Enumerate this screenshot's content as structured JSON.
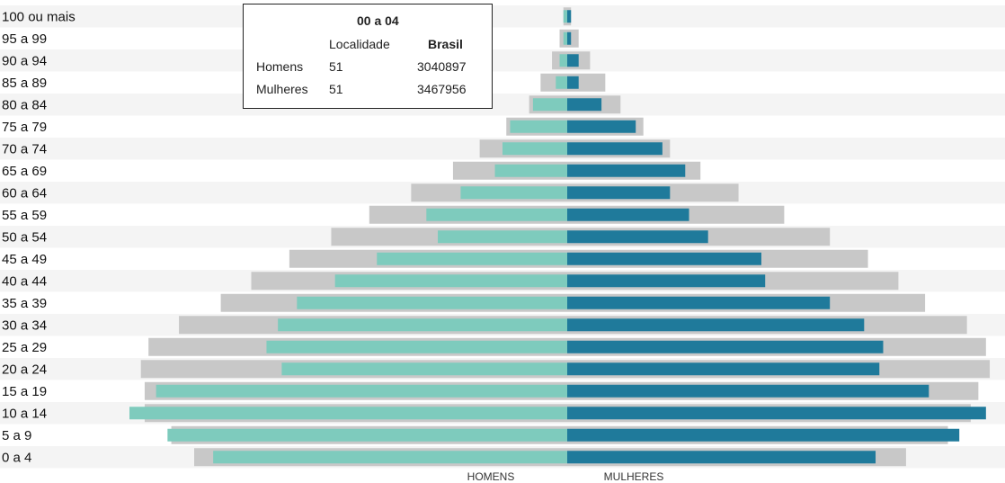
{
  "chart_data": {
    "type": "bar",
    "orientation": "horizontal-pyramid",
    "categories": [
      "100 ou mais",
      "95 a 99",
      "90 a 94",
      "85 a 89",
      "80 a 84",
      "75 a 79",
      "70 a 74",
      "65 a 69",
      "60 a 64",
      "55 a 59",
      "50 a 54",
      "45 a 49",
      "40 a 44",
      "35 a 39",
      "30 a 34",
      "25 a 29",
      "20 a 24",
      "15 a 19",
      "10 a 14",
      "5 a 9",
      "0 a 4"
    ],
    "series": [
      {
        "name": "",
        "role": "brasil-homens",
        "values": [
          0.1,
          0.2,
          0.4,
          0.7,
          1.0,
          1.6,
          2.3,
          3.0,
          4.1,
          5.2,
          6.2,
          7.3,
          8.3,
          9.1,
          10.2,
          11.0,
          11.2,
          11.1,
          11.1,
          10.4,
          9.8
        ]
      },
      {
        "name": "",
        "role": "brasil-mulheres",
        "values": [
          0.1,
          0.3,
          0.6,
          1.0,
          1.4,
          2.0,
          2.7,
          3.5,
          4.5,
          5.7,
          6.9,
          7.9,
          8.7,
          9.4,
          10.5,
          11.0,
          11.1,
          10.8,
          10.6,
          10.0,
          8.9
        ]
      },
      {
        "name": "",
        "role": "localidade-homens",
        "values": [
          0.1,
          0.1,
          0.2,
          0.3,
          0.9,
          1.5,
          1.7,
          1.9,
          2.8,
          3.7,
          3.4,
          5.0,
          6.1,
          7.1,
          7.6,
          7.9,
          7.5,
          10.8,
          11.5,
          10.5,
          9.3
        ]
      },
      {
        "name": "",
        "role": "localidade-mulheres",
        "values": [
          0.1,
          0.1,
          0.3,
          0.3,
          0.9,
          1.8,
          2.5,
          3.1,
          2.7,
          3.2,
          3.7,
          5.1,
          5.2,
          6.9,
          7.8,
          8.3,
          8.2,
          9.5,
          11.0,
          10.3,
          8.1
        ]
      }
    ],
    "xlabel_left": "HOMENS",
    "xlabel_right": "MULHERES",
    "xlim_per_side": [
      0,
      11.5
    ],
    "colors": {
      "brasil": "#c8c8c8",
      "localidade_homens": "#7ecbbd",
      "localidade_mulheres": "#1f7a9b",
      "stripe": "#f4f4f4"
    }
  },
  "tooltip": {
    "title": "00 a 04",
    "col1": "Localidade",
    "col2": "Brasil",
    "rows": [
      {
        "label": "Homens",
        "localidade": "51",
        "brasil": "3040897"
      },
      {
        "label": "Mulheres",
        "localidade": "51",
        "brasil": "3467956"
      }
    ]
  }
}
